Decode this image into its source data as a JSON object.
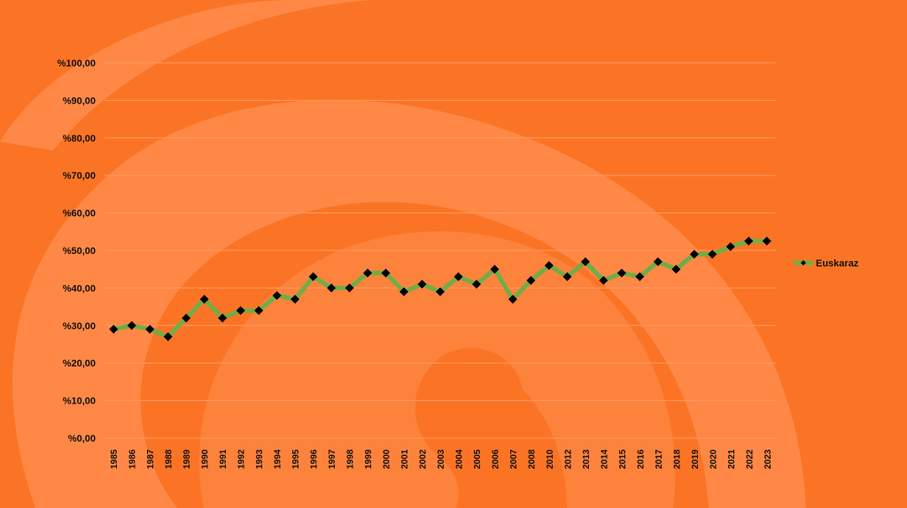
{
  "colors": {
    "background": "#fb7425",
    "decor_swirl": "#ff8c4c",
    "gridline": "#ff9a63",
    "line": "#70ad47",
    "marker": "#000000"
  },
  "chart_data": {
    "type": "line",
    "title": "",
    "xlabel": "",
    "ylabel": "",
    "ylim": [
      0,
      100
    ],
    "y_ticks": [
      "%0,00",
      "%10,00",
      "%20,00",
      "%30,00",
      "%40,00",
      "%50,00",
      "%60,00",
      "%70,00",
      "%80,00",
      "%90,00",
      "%100,00"
    ],
    "grid": true,
    "legend_position": "right",
    "categories": [
      "1985",
      "1986",
      "1987",
      "1988",
      "1989",
      "1990",
      "1991",
      "1992",
      "1993",
      "1994",
      "1995",
      "1996",
      "1997",
      "1998",
      "1999",
      "2000",
      "2001",
      "2002",
      "2003",
      "2004",
      "2005",
      "2006",
      "2007",
      "2008",
      "2010",
      "2012",
      "2013",
      "2014",
      "2015",
      "2016",
      "2017",
      "2018",
      "2019",
      "2020",
      "2021",
      "2022",
      "2023"
    ],
    "series": [
      {
        "name": "Euskaraz",
        "values": [
          29,
          30,
          29,
          27,
          32,
          37,
          32,
          34,
          34,
          38,
          37,
          43,
          40,
          40,
          44,
          44,
          39,
          41,
          39,
          43,
          41,
          45,
          37,
          42,
          46,
          43,
          47,
          42,
          44,
          43,
          47,
          45,
          49,
          49,
          51,
          52.5,
          52.5
        ]
      }
    ]
  }
}
